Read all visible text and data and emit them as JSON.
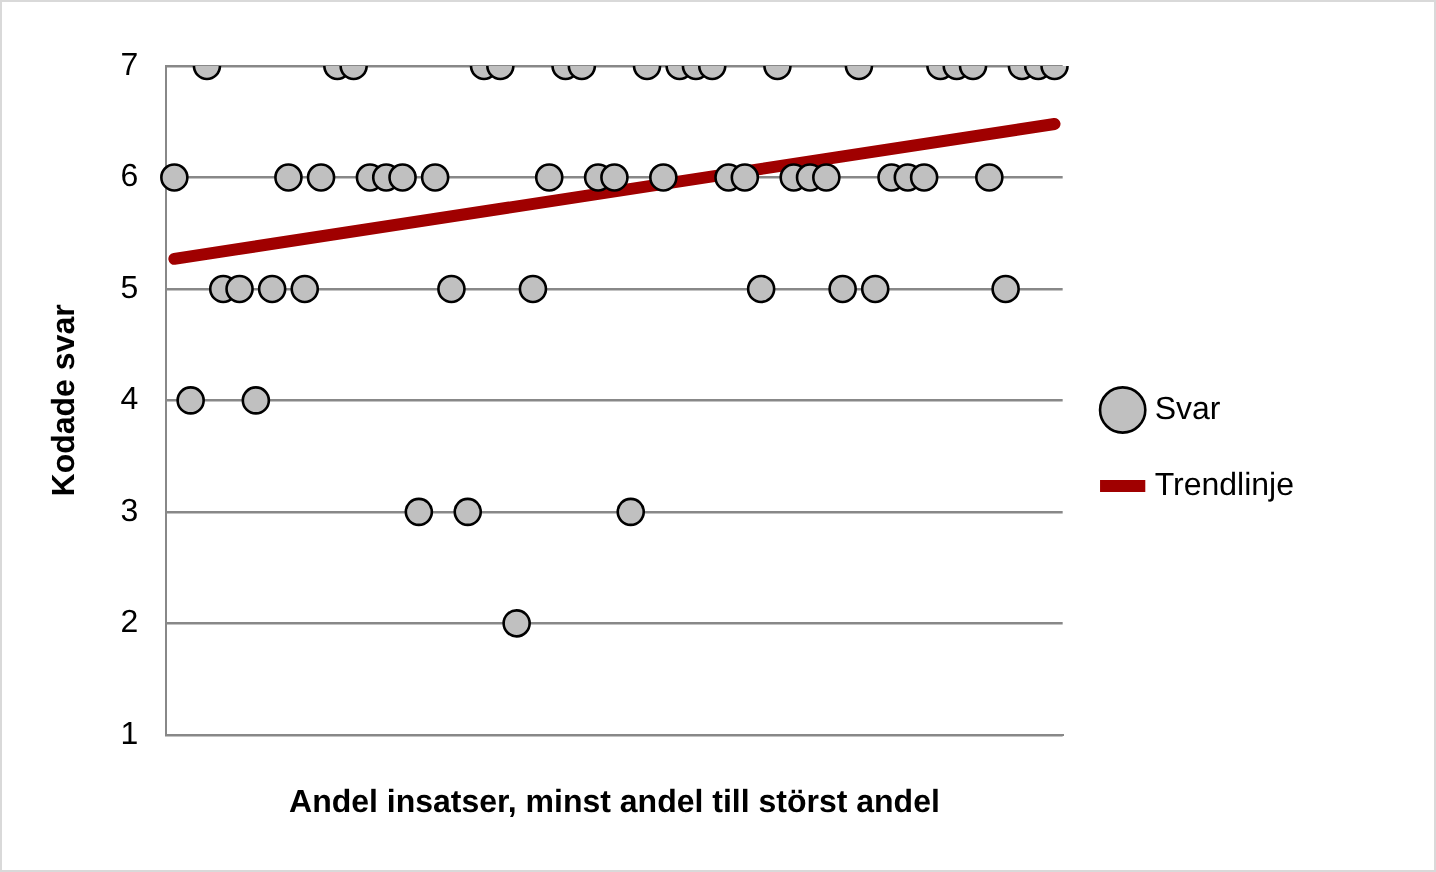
{
  "chart_data": {
    "type": "scatter",
    "xlabel": "Andel insatser, minst andel till störst andel",
    "ylabel": "Kodade svar",
    "categories": [
      null,
      null,
      null,
      null,
      null,
      null,
      null,
      null,
      null,
      null,
      null,
      null,
      null,
      null,
      null,
      null,
      null,
      null,
      null,
      null,
      null,
      null,
      null,
      null,
      null,
      null,
      null,
      null,
      null,
      null,
      null,
      null,
      null,
      null,
      null,
      null,
      null,
      null,
      null,
      null,
      null,
      null,
      null,
      null,
      null,
      null,
      null,
      null,
      null,
      null,
      null,
      null,
      null,
      null,
      null
    ],
    "series": [
      {
        "name": "Svar",
        "color": "#c0c0c0",
        "marker": "circle",
        "values": [
          6,
          4,
          7,
          5,
          5,
          4,
          5,
          6,
          5,
          6,
          7,
          7,
          6,
          6,
          6,
          3,
          6,
          5,
          3,
          7,
          7,
          2,
          5,
          6,
          7,
          7,
          6,
          6,
          3,
          7,
          6,
          7,
          7,
          7,
          6,
          6,
          5,
          7,
          6,
          6,
          6,
          5,
          7,
          5,
          6,
          6,
          6,
          7,
          7,
          7,
          6,
          5,
          7,
          7,
          7
        ]
      },
      {
        "name": "Trendlinje",
        "type": "line",
        "color": "#a00000",
        "values": [
          5.27,
          null,
          null,
          null,
          null,
          null,
          null,
          null,
          null,
          null,
          null,
          null,
          null,
          null,
          null,
          null,
          null,
          null,
          null,
          null,
          null,
          null,
          null,
          null,
          null,
          null,
          null,
          null,
          null,
          null,
          null,
          null,
          null,
          null,
          null,
          null,
          null,
          null,
          null,
          null,
          null,
          null,
          null,
          null,
          null,
          null,
          null,
          null,
          null,
          null,
          null,
          null,
          null,
          null,
          6.48
        ]
      }
    ],
    "ylim": [
      1,
      7
    ],
    "yticks": [
      1,
      2,
      3,
      4,
      5,
      6,
      7
    ],
    "grid": "y",
    "legend": "right"
  }
}
